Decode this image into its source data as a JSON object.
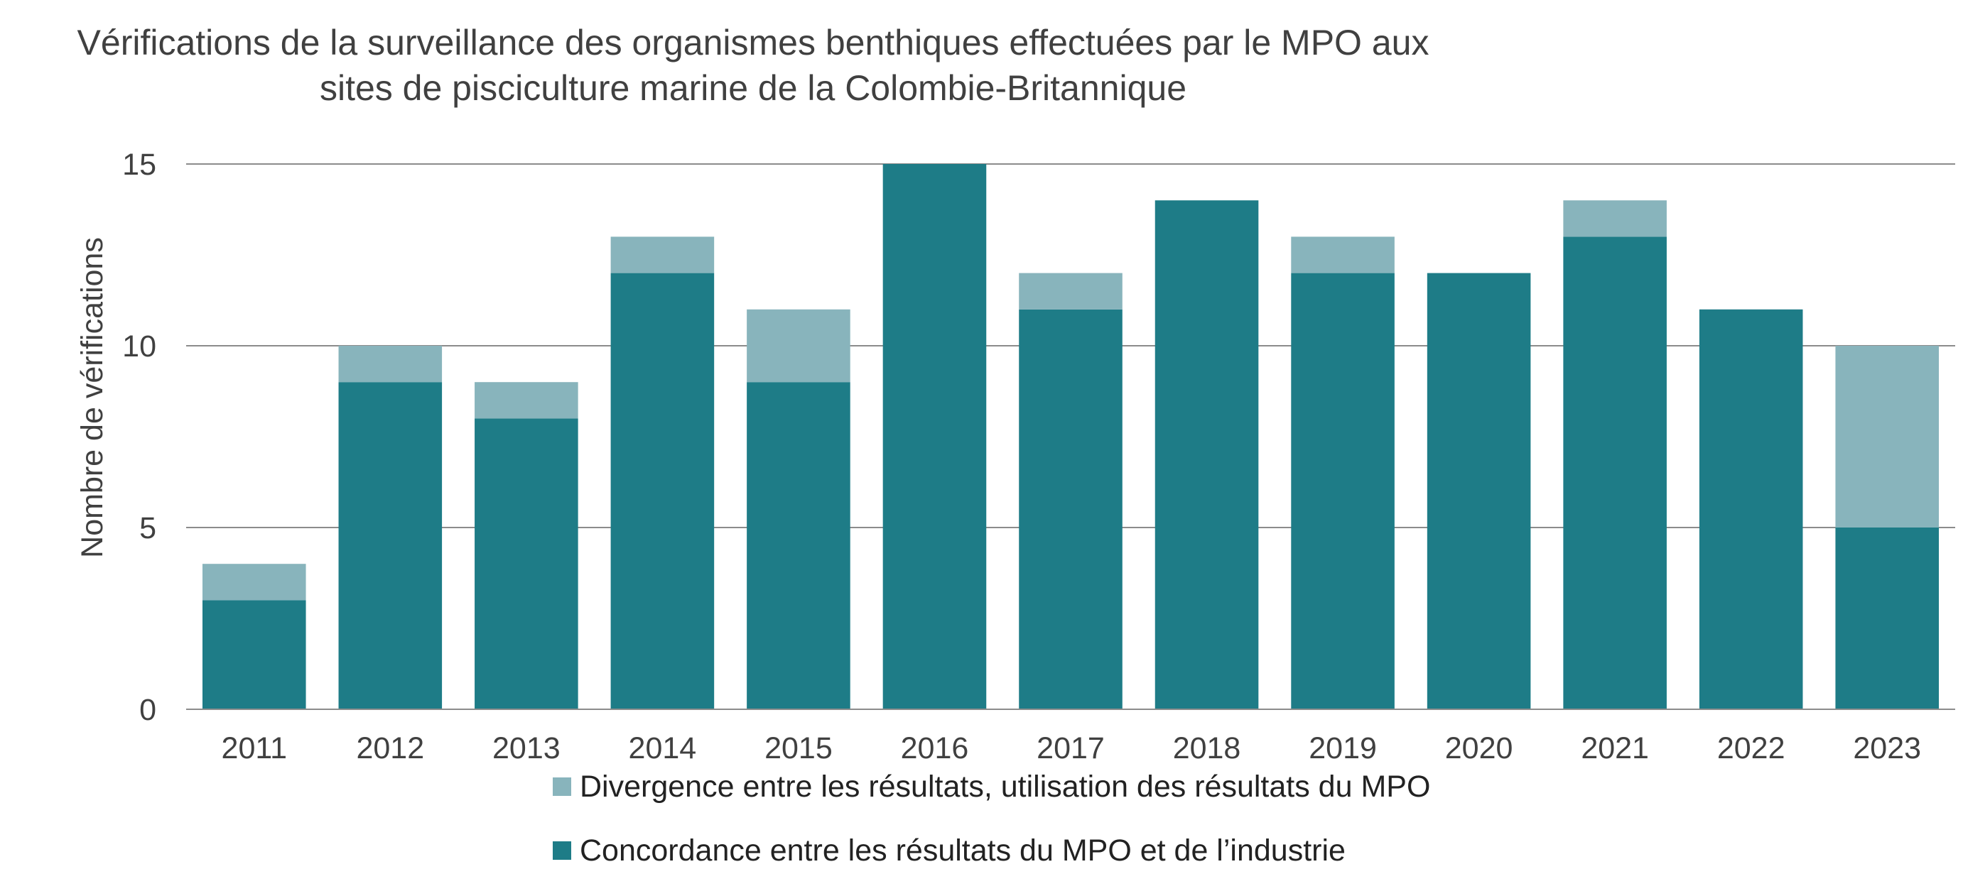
{
  "chart_data": {
    "type": "bar",
    "stacked": true,
    "title": [
      "Vérifications de la surveillance des organismes benthiques effectuées par le MPO aux",
      "sites de pisciculture marine de la Colombie-Britannique"
    ],
    "xlabel": "",
    "ylabel": "Nombre de vérifications",
    "ylim": [
      0,
      15
    ],
    "yticks": [
      "0",
      "5",
      "10",
      "15"
    ],
    "grid": true,
    "legend_position": "bottom",
    "categories": [
      "2011",
      "2012",
      "2013",
      "2014",
      "2015",
      "2016",
      "2017",
      "2018",
      "2019",
      "2020",
      "2021",
      "2022",
      "2023"
    ],
    "series": [
      {
        "name": "Concordance entre les résultats du MPO et de l’industrie",
        "color": "#1e7c87",
        "values": [
          3,
          9,
          8,
          12,
          9,
          15,
          11,
          14,
          12,
          12,
          13,
          11,
          5
        ]
      },
      {
        "name": "Divergence entre les résultats, utilisation des résultats du MPO",
        "color": "#88b4bc",
        "values": [
          1,
          1,
          1,
          1,
          2,
          0,
          1,
          0,
          1,
          0,
          1,
          0,
          5
        ]
      }
    ]
  }
}
